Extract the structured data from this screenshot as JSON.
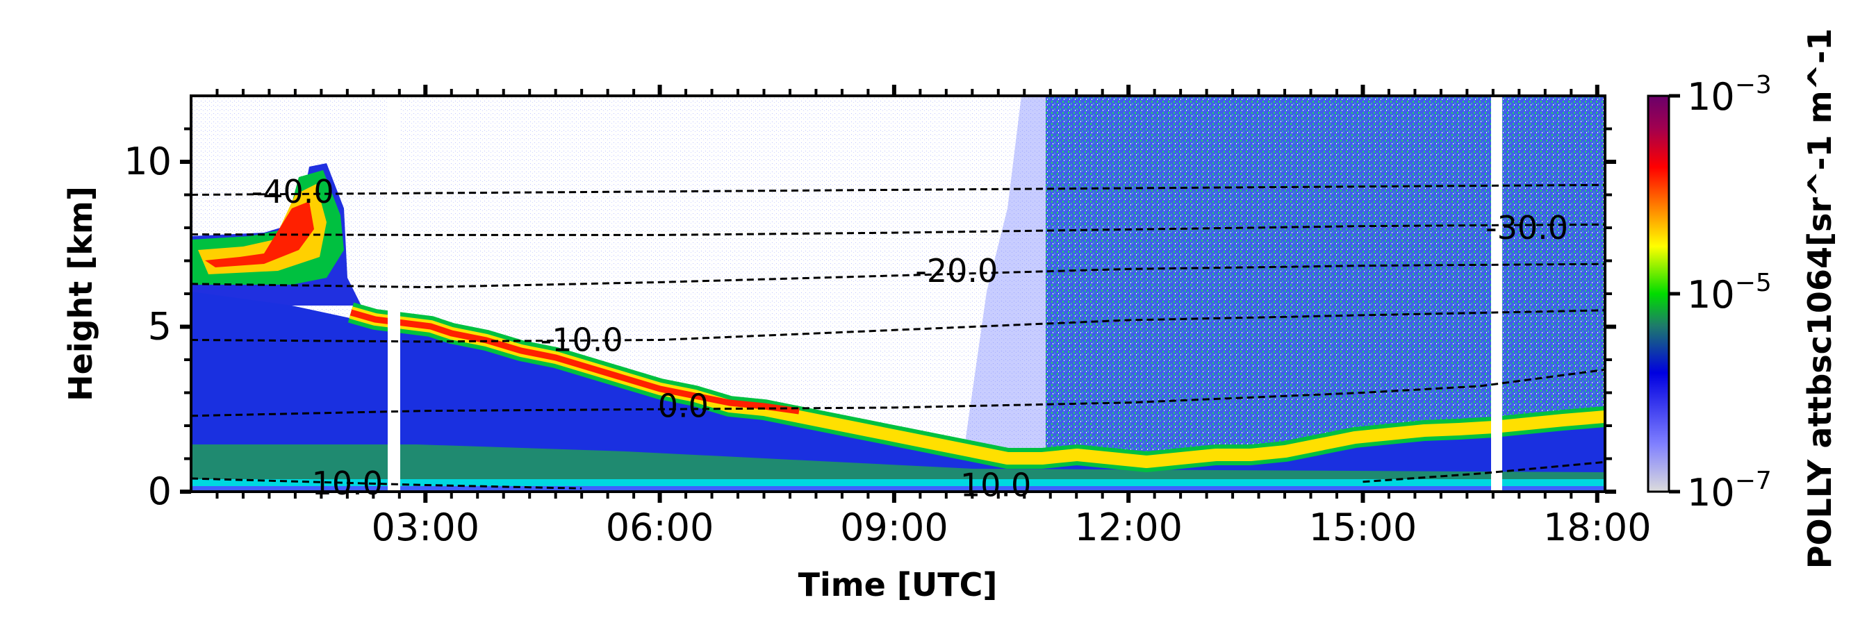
{
  "chart_data": {
    "type": "heatmap",
    "title": "",
    "xlabel": "Time [UTC]",
    "ylabel": "Height [km]",
    "colorbar_label": "POLLY attbsc1064[sr^-1 m^-1",
    "colorscale": "log",
    "colormap": [
      "#dcdcdc",
      "#8080ff",
      "#0000e0",
      "#1e7c6a",
      "#00dc00",
      "#ffff00",
      "#ff8000",
      "#ff0000",
      "#a00050",
      "#6a006a"
    ],
    "clim": [
      "1e-7",
      "1e-3"
    ],
    "xlim_hours": [
      0.0,
      18.1
    ],
    "ylim_km": [
      0,
      12
    ],
    "x_ticks": [
      "03:00",
      "06:00",
      "09:00",
      "12:00",
      "15:00",
      "18:00"
    ],
    "y_ticks": [
      "0",
      "5",
      "10"
    ],
    "colorbar_ticks": [
      {
        "base": "10",
        "exp": "−7",
        "value_log10": -7
      },
      {
        "base": "10",
        "exp": "−5",
        "value_log10": -5
      },
      {
        "base": "10",
        "exp": "−3",
        "value_log10": -3
      }
    ],
    "data_gaps_utc": [
      [
        "02:30",
        "02:40"
      ],
      [
        "16:40",
        "16:50"
      ]
    ],
    "temperature_contours": [
      {
        "label": "-40.0",
        "label_x": 1.3,
        "label_y": 9.1,
        "points": [
          [
            0,
            9.0
          ],
          [
            3,
            9.05
          ],
          [
            6,
            9.1
          ],
          [
            9,
            9.15
          ],
          [
            12,
            9.2
          ],
          [
            15,
            9.25
          ],
          [
            18.1,
            9.3
          ]
        ]
      },
      {
        "label": "-30.0",
        "label_x": 17.1,
        "label_y": 8.0,
        "points": [
          [
            0,
            7.8
          ],
          [
            3,
            7.78
          ],
          [
            6,
            7.78
          ],
          [
            9,
            7.85
          ],
          [
            12,
            7.95
          ],
          [
            15,
            8.05
          ],
          [
            18.1,
            8.1
          ]
        ]
      },
      {
        "label": "-20.0",
        "label_x": 9.8,
        "label_y": 6.7,
        "points": [
          [
            0,
            6.3
          ],
          [
            3,
            6.2
          ],
          [
            6,
            6.35
          ],
          [
            9,
            6.55
          ],
          [
            12,
            6.75
          ],
          [
            15,
            6.85
          ],
          [
            18.1,
            6.9
          ]
        ]
      },
      {
        "label": "-10.0",
        "label_x": 5.0,
        "label_y": 4.6,
        "points": [
          [
            0,
            4.6
          ],
          [
            3,
            4.55
          ],
          [
            6,
            4.6
          ],
          [
            9,
            4.9
          ],
          [
            12,
            5.2
          ],
          [
            15,
            5.35
          ],
          [
            18.1,
            5.5
          ]
        ]
      },
      {
        "label": "0.0",
        "label_x": 6.3,
        "label_y": 2.6,
        "points": [
          [
            0,
            2.3
          ],
          [
            3,
            2.45
          ],
          [
            6,
            2.5
          ],
          [
            9,
            2.55
          ],
          [
            12,
            2.7
          ],
          [
            15,
            3.0
          ],
          [
            16.5,
            3.2
          ],
          [
            18.1,
            3.7
          ]
        ]
      },
      {
        "label": "10.0",
        "label_x": 2.0,
        "label_y": 0.25,
        "points": [
          [
            0,
            0.4
          ],
          [
            1.5,
            0.3
          ],
          [
            3,
            0.2
          ],
          [
            5,
            0.1
          ]
        ]
      },
      {
        "label": "10.0",
        "label_x": 10.3,
        "label_y": 0.2,
        "points": [
          [
            15,
            0.3
          ],
          [
            16.5,
            0.55
          ],
          [
            18.1,
            0.9
          ]
        ]
      }
    ]
  }
}
